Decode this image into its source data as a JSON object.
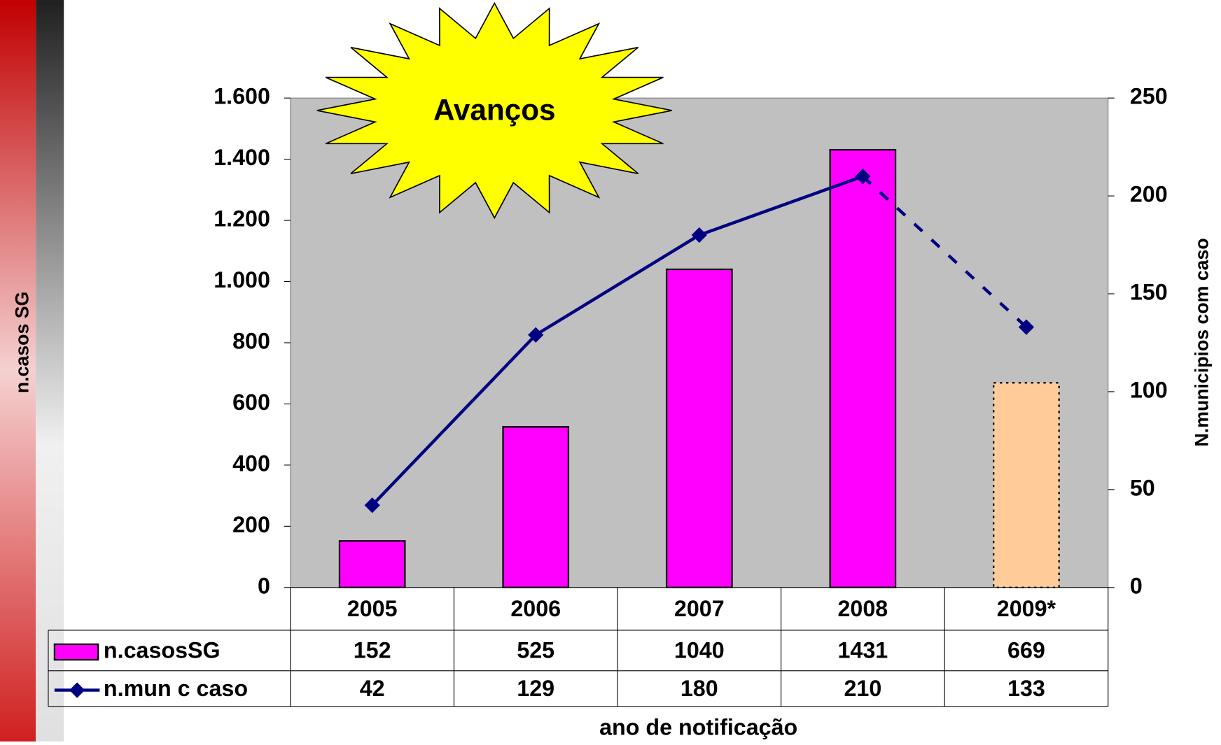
{
  "chart_data": {
    "type": "bar_line",
    "annotation": "Avanços",
    "y_label": "n.casos SG",
    "y2_label": "N.municipios com caso",
    "x_label": "ano de notificação",
    "categories": [
      "2005",
      "2006",
      "2007",
      "2008",
      "2009*"
    ],
    "series": [
      {
        "name": "n.casosSG",
        "type": "bar",
        "color": "#ff00ff",
        "colors": [
          "#ff00ff",
          "#ff00ff",
          "#ff00ff",
          "#ff00ff",
          "#ffcc99"
        ],
        "values": [
          152,
          525,
          1040,
          1431,
          669
        ]
      },
      {
        "name": "n.mun c caso",
        "type": "line",
        "axis": "y2",
        "color": "#000080",
        "dash_last_segment": true,
        "values": [
          42,
          129,
          180,
          210,
          133
        ]
      }
    ],
    "ylim": [
      0,
      1600
    ],
    "yticks": [
      0,
      200,
      400,
      600,
      800,
      {
        "value": 1000,
        "label": "1.000"
      },
      {
        "value": 1200,
        "label": "1.200"
      },
      {
        "value": 1400,
        "label": "1.400"
      },
      {
        "value": 1600,
        "label": "1.600"
      }
    ],
    "y2lim": [
      0,
      250
    ],
    "y2ticks": [
      0,
      50,
      100,
      150,
      200,
      250
    ],
    "plot_background": "#c0c0c0"
  }
}
